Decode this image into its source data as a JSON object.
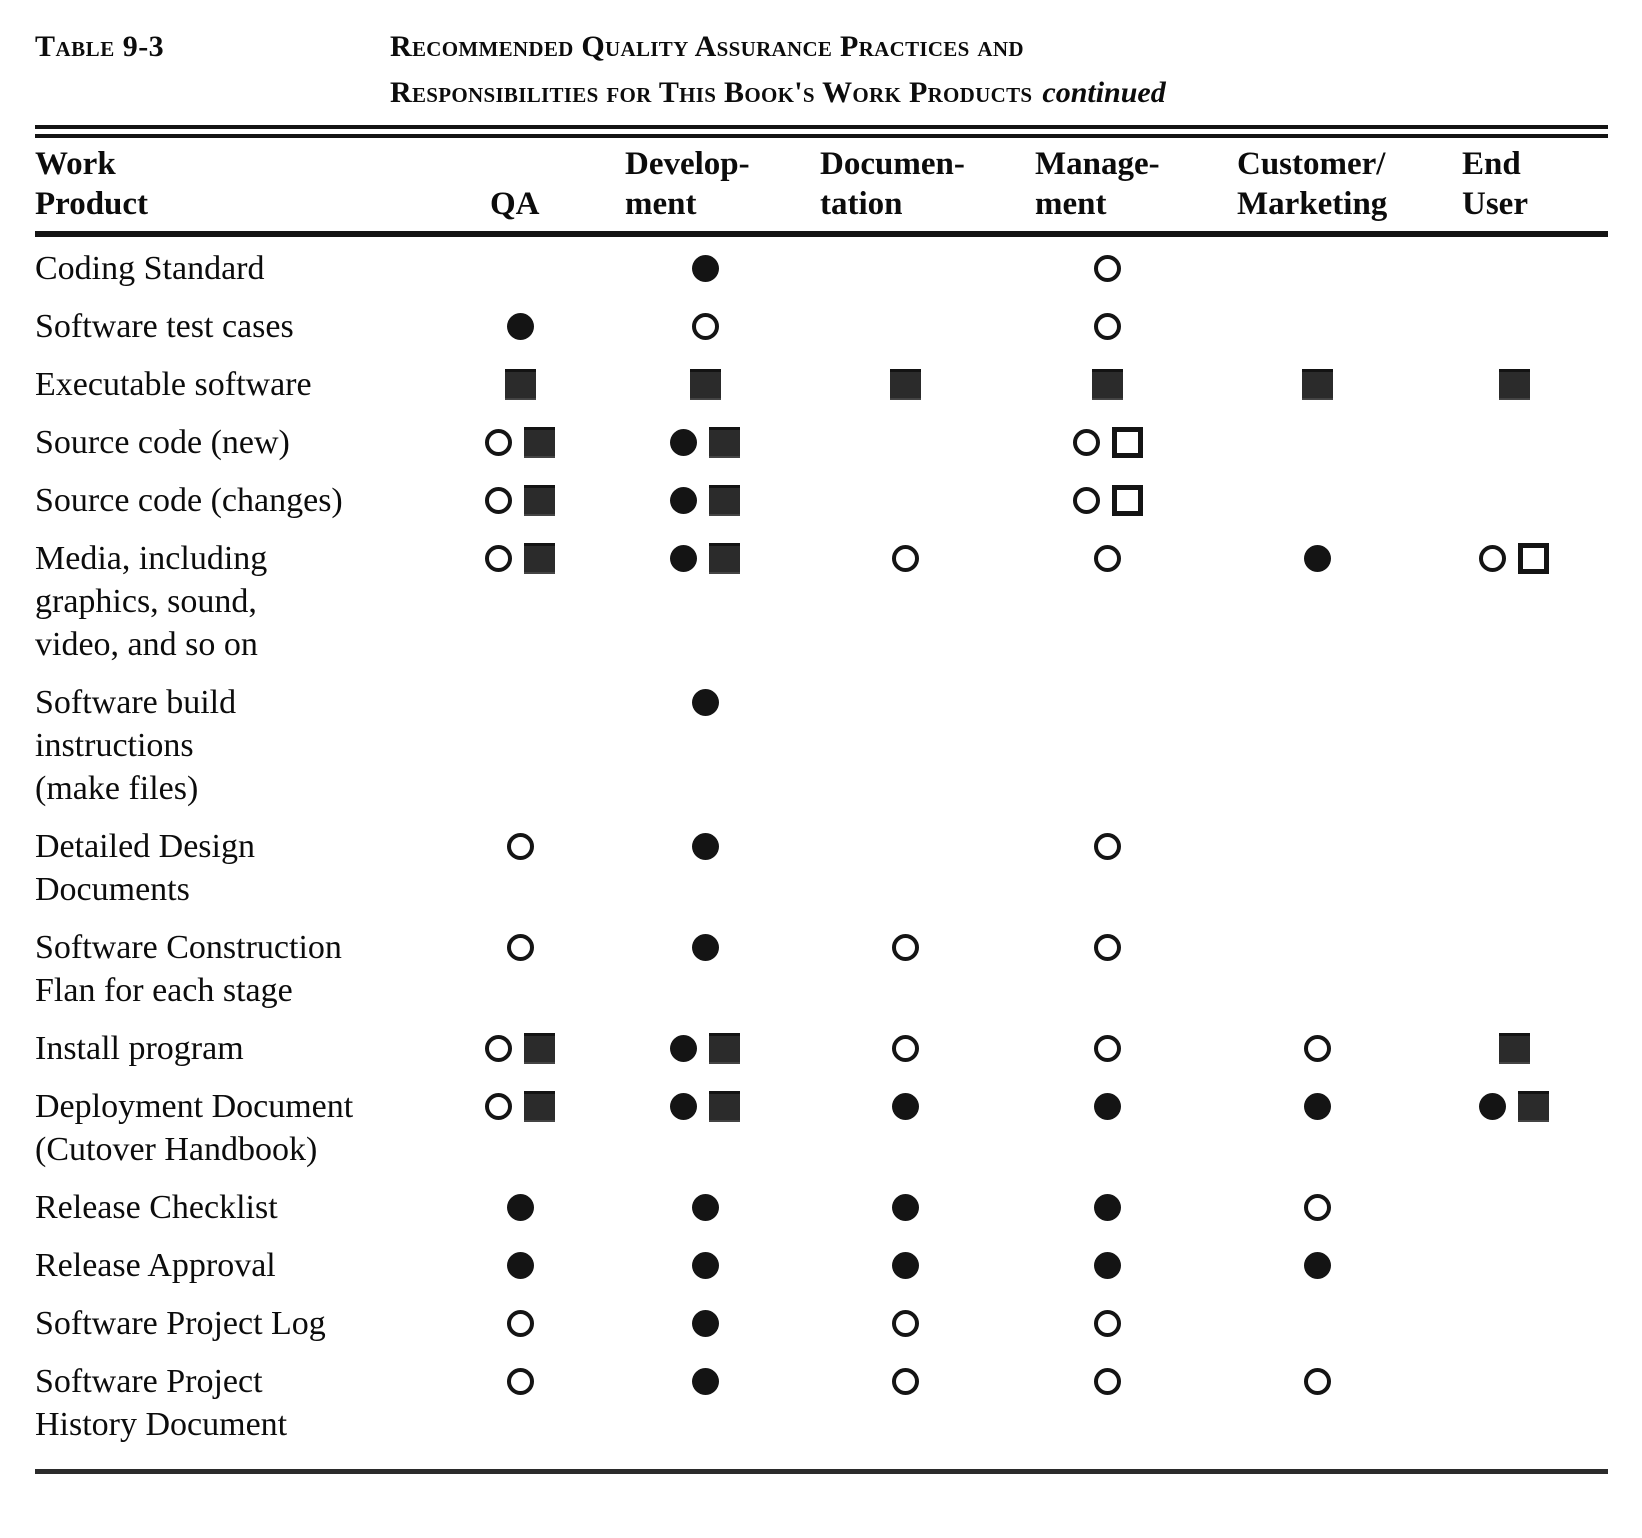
{
  "page": {
    "background": "#ffffff",
    "ink": "#141414"
  },
  "caption": {
    "tag": "Table 9-3",
    "title_line1": "Recommended Quality Assurance Practices and",
    "title_line2": "Responsibilities for This Book's Work Products",
    "title_suffix": "continued"
  },
  "table": {
    "columns": [
      {
        "id": "work_product",
        "line1": "Work",
        "line2": "Product"
      },
      {
        "id": "qa",
        "line1": "",
        "line2": "QA"
      },
      {
        "id": "development",
        "line1": "Develop-",
        "line2": "ment"
      },
      {
        "id": "documentation",
        "line1": "Documen-",
        "line2": "tation"
      },
      {
        "id": "management",
        "line1": "Manage-",
        "line2": "ment"
      },
      {
        "id": "customer_marketing",
        "line1": "Customer/",
        "line2": "Marketing"
      },
      {
        "id": "end_user",
        "line1": "End",
        "line2": "User"
      }
    ],
    "symbol_legend": {
      "fc": "filled-circle",
      "oc": "open-circle",
      "fs": "filled-square",
      "os": "open-square"
    },
    "rows": [
      {
        "product_lines": [
          "Coding Standard"
        ],
        "qa": [],
        "development": [
          "fc"
        ],
        "documentation": [],
        "management": [
          "oc"
        ],
        "customer_marketing": [],
        "end_user": []
      },
      {
        "product_lines": [
          "Software test cases"
        ],
        "qa": [
          "fc"
        ],
        "development": [
          "oc"
        ],
        "documentation": [],
        "management": [
          "oc"
        ],
        "customer_marketing": [],
        "end_user": []
      },
      {
        "product_lines": [
          "Executable software"
        ],
        "qa": [
          "fs"
        ],
        "development": [
          "fs"
        ],
        "documentation": [
          "fs"
        ],
        "management": [
          "fs"
        ],
        "customer_marketing": [
          "fs"
        ],
        "end_user": [
          "fs"
        ]
      },
      {
        "product_lines": [
          "Source code (new)"
        ],
        "qa": [
          "oc",
          "fs"
        ],
        "development": [
          "fc",
          "fs"
        ],
        "documentation": [],
        "management": [
          "oc",
          "os"
        ],
        "customer_marketing": [],
        "end_user": []
      },
      {
        "product_lines": [
          "Source code (changes)"
        ],
        "qa": [
          "oc",
          "fs"
        ],
        "development": [
          "fc",
          "fs"
        ],
        "documentation": [],
        "management": [
          "oc",
          "os"
        ],
        "customer_marketing": [],
        "end_user": []
      },
      {
        "product_lines": [
          "Media, including",
          "graphics, sound,",
          "video, and so on"
        ],
        "qa": [
          "oc",
          "fs"
        ],
        "development": [
          "fc",
          "fs"
        ],
        "documentation": [
          "oc"
        ],
        "management": [
          "oc"
        ],
        "customer_marketing": [
          "fc"
        ],
        "end_user": [
          "oc",
          "os"
        ]
      },
      {
        "product_lines": [
          "Software build",
          "instructions",
          "(make files)"
        ],
        "qa": [],
        "development": [
          "fc"
        ],
        "documentation": [],
        "management": [],
        "customer_marketing": [],
        "end_user": []
      },
      {
        "product_lines": [
          "Detailed Design",
          "Documents"
        ],
        "qa": [
          "oc"
        ],
        "development": [
          "fc"
        ],
        "documentation": [],
        "management": [
          "oc"
        ],
        "customer_marketing": [],
        "end_user": []
      },
      {
        "product_lines": [
          "Software Construction",
          "Flan for each stage"
        ],
        "qa": [
          "oc"
        ],
        "development": [
          "fc"
        ],
        "documentation": [
          "oc"
        ],
        "management": [
          "oc"
        ],
        "customer_marketing": [],
        "end_user": []
      },
      {
        "product_lines": [
          "Install program"
        ],
        "qa": [
          "oc",
          "fs"
        ],
        "development": [
          "fc",
          "fs"
        ],
        "documentation": [
          "oc"
        ],
        "management": [
          "oc"
        ],
        "customer_marketing": [
          "oc"
        ],
        "end_user": [
          "fs"
        ]
      },
      {
        "product_lines": [
          "Deployment Document",
          "(Cutover Handbook)"
        ],
        "qa": [
          "oc",
          "fs"
        ],
        "development": [
          "fc",
          "fs"
        ],
        "documentation": [
          "fc"
        ],
        "management": [
          "fc"
        ],
        "customer_marketing": [
          "fc"
        ],
        "end_user": [
          "fc",
          "fs"
        ]
      },
      {
        "product_lines": [
          "Release Checklist"
        ],
        "qa": [
          "fc"
        ],
        "development": [
          "fc"
        ],
        "documentation": [
          "fc"
        ],
        "management": [
          "fc"
        ],
        "customer_marketing": [
          "oc"
        ],
        "end_user": []
      },
      {
        "product_lines": [
          "Release Approval"
        ],
        "qa": [
          "fc"
        ],
        "development": [
          "fc"
        ],
        "documentation": [
          "fc"
        ],
        "management": [
          "fc"
        ],
        "customer_marketing": [
          "fc"
        ],
        "end_user": []
      },
      {
        "product_lines": [
          "Software Project Log"
        ],
        "qa": [
          "oc"
        ],
        "development": [
          "fc"
        ],
        "documentation": [
          "oc"
        ],
        "management": [
          "oc"
        ],
        "customer_marketing": [],
        "end_user": []
      },
      {
        "product_lines": [
          "Software Project",
          "History Document"
        ],
        "qa": [
          "oc"
        ],
        "development": [
          "fc"
        ],
        "documentation": [
          "oc"
        ],
        "management": [
          "oc"
        ],
        "customer_marketing": [
          "oc"
        ],
        "end_user": []
      }
    ]
  }
}
